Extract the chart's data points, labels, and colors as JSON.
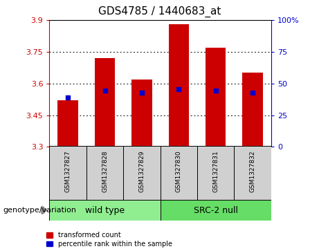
{
  "title": "GDS4785 / 1440683_at",
  "categories": [
    "GSM1327827",
    "GSM1327828",
    "GSM1327829",
    "GSM1327830",
    "GSM1327831",
    "GSM1327832"
  ],
  "group_labels": [
    "wild type",
    "SRC-2 null"
  ],
  "bar_bottoms": [
    3.3,
    3.3,
    3.3,
    3.3,
    3.3,
    3.3
  ],
  "bar_tops": [
    3.52,
    3.72,
    3.62,
    3.88,
    3.77,
    3.65
  ],
  "blue_markers": [
    3.535,
    3.565,
    3.558,
    3.572,
    3.566,
    3.557
  ],
  "ylim": [
    3.3,
    3.9
  ],
  "yticks_left": [
    3.3,
    3.45,
    3.6,
    3.75,
    3.9
  ],
  "yticks_right": [
    0,
    25,
    50,
    75,
    100
  ],
  "bar_color": "#cc0000",
  "blue_color": "#0000cc",
  "wild_type_color": "#90ee90",
  "src2_null_color": "#66dd66",
  "sample_box_color": "#d0d0d0",
  "legend_red_label": "transformed count",
  "legend_blue_label": "percentile rank within the sample",
  "genotype_label": "genotype/variation",
  "bar_width": 0.55,
  "title_fontsize": 11,
  "tick_fontsize": 8,
  "label_fontsize": 8,
  "cat_fontsize": 6.5,
  "group_fontsize": 9,
  "legend_fontsize": 7
}
